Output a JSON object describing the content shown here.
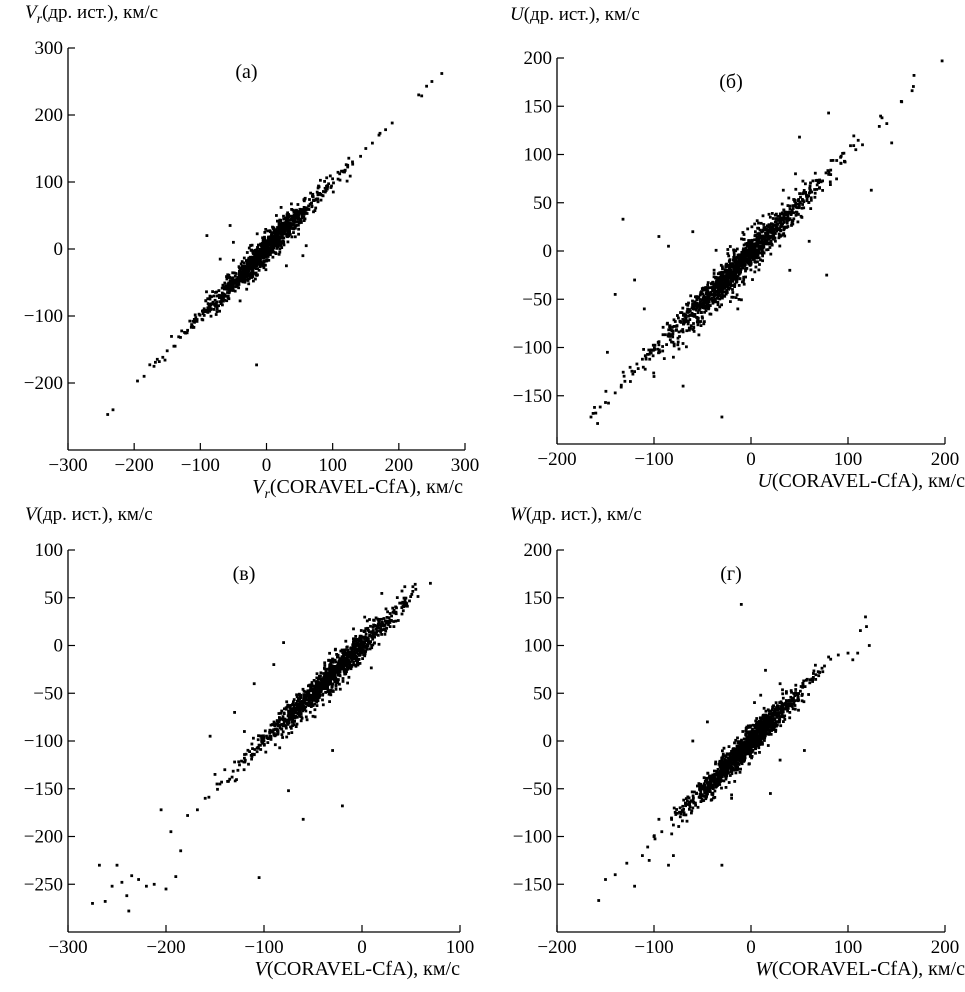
{
  "chart_data": [
    {
      "type": "scatter",
      "panel_label": "(а)",
      "ylabel_var": "V",
      "ylabel_sub": "r",
      "ylabel_rest": "(др. ист.), км/с",
      "xlabel_var": "V",
      "xlabel_sub": "r",
      "xlabel_rest": "(CORAVEL-CfA), км/с",
      "xlim": [
        -300,
        300
      ],
      "ylim": [
        -300,
        300
      ],
      "xticks": [
        -300,
        -200,
        -100,
        0,
        100,
        200,
        300
      ],
      "yticks": [
        -200,
        -100,
        0,
        100,
        200,
        300
      ],
      "xtick_labels": [
        "−300",
        "−200",
        "−100",
        "0",
        "100",
        "200",
        "300"
      ],
      "ytick_labels": [
        "−200",
        "−100",
        "0",
        "100",
        "200",
        "300"
      ],
      "grid": false,
      "outliers": [
        [
          -90,
          20
        ],
        [
          -15,
          -173
        ],
        [
          15,
          50
        ],
        [
          40,
          58
        ],
        [
          -50,
          10
        ],
        [
          60,
          5
        ],
        [
          -70,
          -15
        ],
        [
          -30,
          -60
        ],
        [
          30,
          -25
        ],
        [
          -55,
          35
        ],
        [
          55,
          -10
        ]
      ],
      "chain": [
        [
          -240,
          -247
        ],
        [
          -232,
          -240
        ],
        [
          -195,
          -197
        ],
        [
          -185,
          -190
        ],
        [
          -170,
          -175
        ],
        [
          -162,
          -168
        ],
        [
          -150,
          -152
        ],
        [
          -140,
          -145
        ],
        [
          -130,
          -132
        ],
        [
          -120,
          -125
        ],
        [
          -112,
          -115
        ],
        [
          -105,
          -108
        ],
        [
          130,
          130
        ],
        [
          150,
          150
        ],
        [
          160,
          158
        ],
        [
          170,
          170
        ],
        [
          180,
          178
        ],
        [
          190,
          188
        ],
        [
          230,
          230
        ],
        [
          242,
          243
        ],
        [
          250,
          250
        ],
        [
          265,
          262
        ]
      ],
      "cloud": [
        {
          "cx": -10,
          "cy": -10,
          "sx": 48,
          "sy": 48,
          "scatter": 14,
          "n": 700
        },
        {
          "cx": 5,
          "cy": 5,
          "sx": 22,
          "sy": 22,
          "scatter": 18,
          "n": 250
        },
        {
          "cx": 0,
          "cy": 0,
          "sx": 70,
          "sy": 70,
          "scatter": 5,
          "n": 150
        }
      ]
    },
    {
      "type": "scatter",
      "panel_label": "(б)",
      "ylabel_var": "U",
      "ylabel_sub": "",
      "ylabel_rest": "(др. ист.), км/с",
      "xlabel_var": "U",
      "xlabel_sub": "",
      "xlabel_rest": "(CORAVEL-CfA), км/с",
      "xlim": [
        -200,
        200
      ],
      "ylim": [
        -200,
        200
      ],
      "xticks": [
        -200,
        -100,
        0,
        100,
        200
      ],
      "yticks": [
        -150,
        -100,
        -50,
        0,
        50,
        100,
        150,
        200
      ],
      "xtick_labels": [
        "−200",
        "−100",
        "0",
        "100",
        "200"
      ],
      "ytick_labels": [
        "−150",
        "−100",
        "−50",
        "0",
        "50",
        "100",
        "150",
        "200"
      ],
      "grid": false,
      "outliers": [
        [
          -132,
          33
        ],
        [
          -140,
          -45
        ],
        [
          -148,
          -105
        ],
        [
          -30,
          -172
        ],
        [
          80,
          143
        ],
        [
          50,
          118
        ],
        [
          78,
          -25
        ],
        [
          124,
          63
        ],
        [
          -95,
          15
        ],
        [
          -120,
          -30
        ],
        [
          -70,
          -140
        ],
        [
          -100,
          -130
        ],
        [
          -85,
          5
        ],
        [
          -60,
          20
        ],
        [
          40,
          -20
        ],
        [
          60,
          10
        ],
        [
          -110,
          -60
        ],
        [
          -80,
          -110
        ]
      ],
      "chain": [
        [
          -165,
          -172
        ],
        [
          -160,
          -168
        ],
        [
          -150,
          -157
        ],
        [
          -140,
          -147
        ],
        [
          -130,
          -135
        ],
        [
          -120,
          -125
        ],
        [
          108,
          105
        ],
        [
          115,
          110
        ],
        [
          135,
          138
        ],
        [
          140,
          132
        ],
        [
          145,
          112
        ],
        [
          155,
          155
        ],
        [
          168,
          182
        ],
        [
          197,
          197
        ]
      ],
      "cloud": [
        {
          "cx": -15,
          "cy": -18,
          "sx": 42,
          "sy": 42,
          "scatter": 11,
          "n": 900
        },
        {
          "cx": -20,
          "cy": -25,
          "sx": 25,
          "sy": 25,
          "scatter": 22,
          "n": 250
        },
        {
          "cx": 0,
          "cy": 0,
          "sx": 60,
          "sy": 60,
          "scatter": 6,
          "n": 150
        }
      ]
    },
    {
      "type": "scatter",
      "panel_label": "(в)",
      "ylabel_var": "V",
      "ylabel_sub": "",
      "ylabel_rest": "(др. ист.), км/с",
      "xlabel_var": "V",
      "xlabel_sub": "",
      "xlabel_rest": "(CORAVEL-CfA), км/с",
      "xlim": [
        -300,
        100
      ],
      "ylim": [
        -300,
        100
      ],
      "xticks": [
        -300,
        -200,
        -100,
        0,
        100
      ],
      "yticks": [
        -250,
        -200,
        -150,
        -100,
        -50,
        0,
        50,
        100
      ],
      "xtick_labels": [
        "−300",
        "−200",
        "−100",
        "0",
        "100"
      ],
      "ytick_labels": [
        "−250",
        "−200",
        "−150",
        "−100",
        "−50",
        "0",
        "50",
        "100"
      ],
      "grid": false,
      "outliers": [
        [
          -105,
          -243
        ],
        [
          -60,
          -182
        ],
        [
          -20,
          -168
        ],
        [
          -75,
          -152
        ],
        [
          -100,
          -100
        ],
        [
          -80,
          3
        ],
        [
          -110,
          -40
        ],
        [
          -155,
          -95
        ],
        [
          -130,
          -70
        ],
        [
          -30,
          -110
        ],
        [
          -90,
          -20
        ],
        [
          -120,
          -90
        ]
      ],
      "chain": [
        [
          -275,
          -270
        ],
        [
          -268,
          -230
        ],
        [
          -262,
          -268
        ],
        [
          -255,
          -252
        ],
        [
          -250,
          -230
        ],
        [
          -245,
          -248
        ],
        [
          -240,
          -262
        ],
        [
          -238,
          -278
        ],
        [
          -235,
          -241
        ],
        [
          -228,
          -245
        ],
        [
          -220,
          -252
        ],
        [
          -212,
          -250
        ],
        [
          -205,
          -172
        ],
        [
          -200,
          -255
        ],
        [
          -195,
          -195
        ],
        [
          -190,
          -242
        ],
        [
          -185,
          -215
        ],
        [
          -178,
          -178
        ],
        [
          -168,
          -172
        ],
        [
          -160,
          -160
        ],
        [
          -150,
          -135
        ],
        [
          -148,
          -145
        ],
        [
          -145,
          -145
        ],
        [
          -140,
          -130
        ],
        [
          -135,
          -140
        ],
        [
          -130,
          -122
        ],
        [
          -125,
          -125
        ],
        [
          -120,
          -118
        ]
      ],
      "cloud": [
        {
          "cx": -35,
          "cy": -35,
          "sx": 38,
          "sy": 38,
          "scatter": 10,
          "n": 850
        },
        {
          "cx": -25,
          "cy": -25,
          "sx": 22,
          "sy": 22,
          "scatter": 15,
          "n": 250
        },
        {
          "cx": -50,
          "cy": -50,
          "sx": 45,
          "sy": 45,
          "scatter": 5,
          "n": 120
        }
      ]
    },
    {
      "type": "scatter",
      "panel_label": "(г)",
      "ylabel_var": "W",
      "ylabel_sub": "",
      "ylabel_rest": "(др. ист.), км/с",
      "xlabel_var": "W",
      "xlabel_sub": "",
      "xlabel_rest": "(CORAVEL-CfA), км/с",
      "xlim": [
        -200,
        200
      ],
      "ylim": [
        -200,
        200
      ],
      "xticks": [
        -200,
        -100,
        0,
        100,
        200
      ],
      "yticks": [
        -150,
        -100,
        -50,
        0,
        50,
        100,
        150,
        200
      ],
      "xtick_labels": [
        "−200",
        "−100",
        "0",
        "100",
        "200"
      ],
      "ytick_labels": [
        "−150",
        "−100",
        "−50",
        "0",
        "50",
        "100",
        "150",
        "200"
      ],
      "grid": false,
      "outliers": [
        [
          -10,
          143
        ],
        [
          15,
          74
        ],
        [
          10,
          48
        ],
        [
          30,
          60
        ],
        [
          -60,
          0
        ],
        [
          -45,
          20
        ],
        [
          -30,
          -130
        ],
        [
          -80,
          -120
        ],
        [
          -60,
          -70
        ],
        [
          55,
          -10
        ],
        [
          40,
          30
        ],
        [
          -20,
          -60
        ],
        [
          30,
          -20
        ],
        [
          20,
          -55
        ]
      ],
      "chain": [
        [
          -157,
          -167
        ],
        [
          -150,
          -145
        ],
        [
          -140,
          -140
        ],
        [
          -128,
          -128
        ],
        [
          -120,
          -152
        ],
        [
          -112,
          -120
        ],
        [
          -105,
          -125
        ],
        [
          -100,
          -100
        ],
        [
          -95,
          -82
        ],
        [
          -92,
          -95
        ],
        [
          -85,
          -130
        ],
        [
          -80,
          -88
        ],
        [
          80,
          88
        ],
        [
          90,
          90
        ],
        [
          100,
          92
        ],
        [
          105,
          85
        ],
        [
          110,
          92
        ],
        [
          118,
          130
        ],
        [
          122,
          100
        ]
      ],
      "cloud": [
        {
          "cx": -10,
          "cy": -12,
          "sx": 30,
          "sy": 30,
          "scatter": 10,
          "n": 900
        },
        {
          "cx": 0,
          "cy": 0,
          "sx": 18,
          "sy": 18,
          "scatter": 14,
          "n": 250
        },
        {
          "cx": 0,
          "cy": 0,
          "sx": 45,
          "sy": 45,
          "scatter": 5,
          "n": 100
        }
      ]
    }
  ]
}
